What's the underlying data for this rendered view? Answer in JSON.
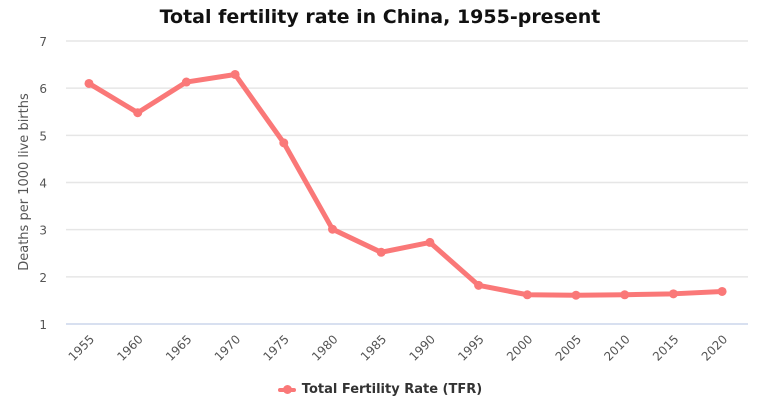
{
  "chart_data": {
    "type": "line",
    "title": "Total fertility rate in China, 1955-present",
    "xlabel": "",
    "ylabel": "Deaths per 1000 live births",
    "ylim": [
      1,
      7
    ],
    "yticks": [
      "1",
      "2",
      "3",
      "4",
      "5",
      "6",
      "7"
    ],
    "categories": [
      "1955",
      "1960",
      "1965",
      "1970",
      "1975",
      "1980",
      "1985",
      "1990",
      "1995",
      "2000",
      "2005",
      "2010",
      "2015",
      "2020"
    ],
    "series": [
      {
        "name": "Total Fertility Rate (TFR)",
        "color": "#fa7878",
        "values": [
          6.1,
          5.48,
          6.13,
          6.29,
          4.84,
          3.01,
          2.52,
          2.73,
          1.82,
          1.62,
          1.61,
          1.62,
          1.64,
          1.69
        ]
      }
    ],
    "grid": true,
    "legend": "bottom-center"
  }
}
